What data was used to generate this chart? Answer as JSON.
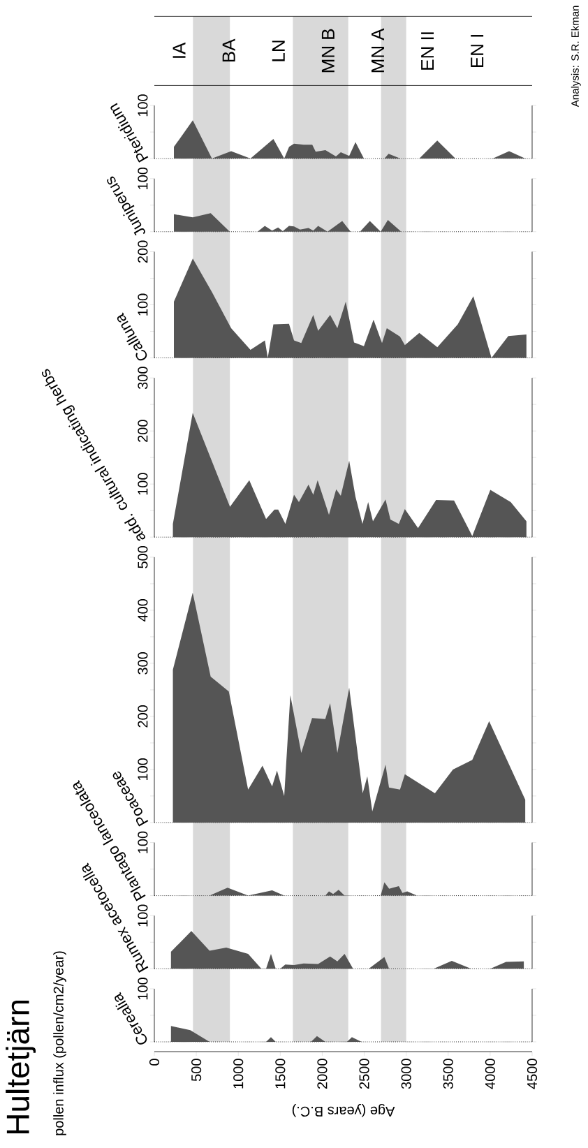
{
  "chart_data": [
    {
      "type": "area",
      "title": "Hultetjärn",
      "subtitle": "pollen influx (pollen/cm2/year)",
      "xlabel": "Age (years B.C.)",
      "xlim": [
        0,
        4500
      ],
      "xticks": [
        0,
        500,
        1000,
        1500,
        2000,
        2500,
        3000,
        3500,
        4000,
        4500
      ],
      "ylim": [
        0,
        100
      ],
      "yticks": [
        {
          "value": 0,
          "label": null
        },
        {
          "value": 50,
          "label": null
        },
        100
      ],
      "bands": [
        {
          "axis": "x",
          "from": 460,
          "to": 900,
          "color": "#d9d9d9"
        },
        {
          "axis": "x",
          "from": 1650,
          "to": 2310,
          "color": "#d9d9d9"
        },
        {
          "axis": "x",
          "from": 2700,
          "to": 3000,
          "color": "#d9d9d9"
        }
      ],
      "series": [
        {
          "name": "Cerealia",
          "color": "#555555",
          "x": [
            198,
            428,
            658,
            1331,
            1389,
            1446,
            1866,
            1937,
            2037,
            2295,
            2353,
            2468
          ],
          "values": [
            30,
            22,
            0,
            0,
            9,
            0,
            0,
            11,
            0,
            0,
            9,
            0
          ]
        }
      ]
    },
    {
      "type": "area",
      "xlim": [
        0,
        4500
      ],
      "ylim": [
        0,
        100
      ],
      "yticks": [
        {
          "value": 0,
          "label": null
        },
        {
          "value": 50,
          "label": null
        },
        100
      ],
      "tick_labels": "y",
      "bands": [
        {
          "axis": "x",
          "from": 460,
          "to": 900,
          "color": "#d9d9d9"
        },
        {
          "axis": "x",
          "from": 1650,
          "to": 2310,
          "color": "#d9d9d9"
        },
        {
          "axis": "x",
          "from": 2700,
          "to": 3000,
          "color": "#d9d9d9"
        }
      ],
      "series": [
        {
          "name": "Rumex acetocella",
          "color": "#555555",
          "x": [
            198,
            441,
            658,
            857,
            1117,
            1275,
            1331,
            1389,
            1446,
            1500,
            1560,
            1664,
            1778,
            1951,
            2094,
            2180,
            2266,
            2367,
            2554,
            2740,
            2796,
            3328,
            3543,
            3773,
            4002,
            4189,
            4401
          ],
          "values": [
            32,
            71,
            34,
            40,
            28,
            0,
            0,
            28,
            0,
            0,
            8,
            7,
            10,
            9,
            23,
            14,
            28,
            0,
            0,
            22,
            0,
            0,
            15,
            0,
            0,
            13,
            14
          ]
        }
      ]
    },
    {
      "type": "area",
      "xlim": [
        0,
        4500
      ],
      "ylim": [
        0,
        100
      ],
      "yticks": [
        {
          "value": 0,
          "label": null
        },
        {
          "value": 50,
          "label": null
        },
        100
      ],
      "tick_labels": "y",
      "bands": [
        {
          "axis": "x",
          "from": 460,
          "to": 900,
          "color": "#d9d9d9"
        },
        {
          "axis": "x",
          "from": 1650,
          "to": 2310,
          "color": "#d9d9d9"
        },
        {
          "axis": "x",
          "from": 2700,
          "to": 3000,
          "color": "#d9d9d9"
        }
      ],
      "series": [
        {
          "name": "Plantago lanceolata",
          "color": "#555555",
          "x": [
            658,
            872,
            1117,
            1403,
            1547,
            2037,
            2080,
            2130,
            2195,
            2266,
            2696,
            2740,
            2797,
            2912,
            2955,
            3012,
            3128
          ],
          "values": [
            0,
            15,
            0,
            10,
            0,
            0,
            8,
            3,
            11,
            0,
            0,
            25,
            13,
            18,
            5,
            8,
            0
          ]
        }
      ]
    },
    {
      "type": "area",
      "xlim": [
        0,
        4500
      ],
      "ylim": [
        0,
        500
      ],
      "yticks": [
        {
          "value": 0,
          "label": null
        },
        {
          "value": 50,
          "label": null
        },
        100,
        {
          "value": 150,
          "label": null
        },
        200,
        {
          "value": 250,
          "label": null
        },
        300,
        {
          "value": 350,
          "label": null
        },
        400,
        {
          "value": 450,
          "label": null
        },
        500
      ],
      "tick_labels": "y",
      "bands": [
        {
          "axis": "x",
          "from": 460,
          "to": 900,
          "color": "#d9d9d9"
        },
        {
          "axis": "x",
          "from": 1650,
          "to": 2310,
          "color": "#d9d9d9"
        },
        {
          "axis": "x",
          "from": 2700,
          "to": 3000,
          "color": "#d9d9d9"
        }
      ],
      "series": [
        {
          "name": "Poaceae",
          "color": "#555555",
          "x": [
            221,
            457,
            671,
            887,
            1117,
            1288,
            1403,
            1461,
            1547,
            1620,
            1750,
            1879,
            2036,
            2094,
            2180,
            2321,
            2482,
            2537,
            2596,
            2754,
            2795,
            2926,
            2984,
            3342,
            3557,
            3787,
            3988,
            4418
          ],
          "values": [
            288,
            433,
            275,
            247,
            62,
            107,
            68,
            98,
            50,
            240,
            131,
            197,
            195,
            225,
            131,
            254,
            55,
            87,
            21,
            109,
            66,
            62,
            91,
            55,
            100,
            118,
            191,
            43
          ]
        }
      ]
    },
    {
      "type": "area",
      "xlim": [
        0,
        4500
      ],
      "ylim": [
        0,
        300
      ],
      "yticks": [
        {
          "value": 0,
          "label": null
        },
        {
          "value": 50,
          "label": null
        },
        100,
        {
          "value": 150,
          "label": null
        },
        200,
        {
          "value": 250,
          "label": null
        },
        300
      ],
      "tick_labels": "y",
      "bands": [
        {
          "axis": "x",
          "from": 460,
          "to": 900,
          "color": "#d9d9d9"
        },
        {
          "axis": "x",
          "from": 1650,
          "to": 2310,
          "color": "#d9d9d9"
        },
        {
          "axis": "x",
          "from": 2700,
          "to": 3000,
          "color": "#d9d9d9"
        }
      ],
      "series": [
        {
          "name": "add. cultural indicating herbs",
          "color": "#555555",
          "x": [
            221,
            457,
            901,
            1131,
            1331,
            1431,
            1475,
            1561,
            1664,
            1722,
            1836,
            1893,
            1945,
            2080,
            2166,
            2221,
            2321,
            2396,
            2479,
            2547,
            2604,
            2754,
            2812,
            2912,
            2984,
            3141,
            3356,
            3570,
            3787,
            4002,
            4245,
            4432
          ],
          "values": [
            25,
            234,
            57,
            107,
            34,
            52,
            52,
            25,
            80,
            66,
            99,
            80,
            107,
            42,
            90,
            78,
            144,
            76,
            25,
            66,
            30,
            71,
            33,
            25,
            53,
            17,
            70,
            69,
            2,
            89,
            66,
            30
          ]
        }
      ]
    },
    {
      "type": "area",
      "xlim": [
        0,
        4500
      ],
      "ylim": [
        0,
        200
      ],
      "yticks": [
        {
          "value": 0,
          "label": null
        },
        {
          "value": 50,
          "label": null
        },
        100,
        {
          "value": 150,
          "label": null
        },
        200
      ],
      "tick_labels": "y",
      "bands": [
        {
          "axis": "x",
          "from": 460,
          "to": 900,
          "color": "#d9d9d9"
        },
        {
          "axis": "x",
          "from": 1650,
          "to": 2310,
          "color": "#d9d9d9"
        },
        {
          "axis": "x",
          "from": 2700,
          "to": 3000,
          "color": "#d9d9d9"
        }
      ],
      "series": [
        {
          "name": "Calluna",
          "color": "#555555",
          "x": [
            233,
            458,
            686,
            915,
            1145,
            1317,
            1351,
            1418,
            1604,
            1664,
            1750,
            1893,
            1951,
            2094,
            2180,
            2280,
            2379,
            2496,
            2611,
            2712,
            2769,
            2926,
            2984,
            3156,
            3371,
            3614,
            3800,
            4016,
            4216,
            4432
          ],
          "values": [
            106,
            187,
            124,
            56,
            15,
            33,
            0,
            63,
            64,
            33,
            28,
            81,
            51,
            81,
            56,
            106,
            29,
            22,
            72,
            28,
            56,
            40,
            24,
            47,
            20,
            63,
            116,
            0,
            41,
            44
          ]
        }
      ]
    },
    {
      "type": "area",
      "xlim": [
        0,
        4500
      ],
      "ylim": [
        0,
        100
      ],
      "yticks": [
        {
          "value": 0,
          "label": null
        },
        {
          "value": 50,
          "label": null
        },
        100
      ],
      "tick_labels": "y",
      "bands": [
        {
          "axis": "x",
          "from": 460,
          "to": 900,
          "color": "#d9d9d9"
        },
        {
          "axis": "x",
          "from": 1650,
          "to": 2310,
          "color": "#d9d9d9"
        },
        {
          "axis": "x",
          "from": 2700,
          "to": 3000,
          "color": "#d9d9d9"
        }
      ],
      "series": [
        {
          "name": "Juniperus",
          "color": "#555555",
          "x": [
            233,
            458,
            671,
            898,
            1145,
            1230,
            1316,
            1403,
            1474,
            1530,
            1604,
            1664,
            1735,
            1836,
            1893,
            1951,
            2063,
            2238,
            2338,
            2450,
            2567,
            2696,
            2782,
            2940
          ],
          "values": [
            33,
            27,
            35,
            0,
            0,
            0,
            11,
            2,
            8,
            1,
            11,
            10,
            4,
            7,
            2,
            11,
            0,
            20,
            0,
            0,
            20,
            0,
            22,
            0
          ]
        }
      ]
    },
    {
      "type": "area",
      "xlim": [
        0,
        4500
      ],
      "ylim": [
        0,
        100
      ],
      "yticks": [
        {
          "value": 0,
          "label": null
        },
        {
          "value": 50,
          "label": null
        },
        100
      ],
      "tick_labels": "y",
      "bands": [
        {
          "axis": "x",
          "from": 460,
          "to": 900,
          "color": "#d9d9d9"
        },
        {
          "axis": "x",
          "from": 1650,
          "to": 2310,
          "color": "#d9d9d9"
        },
        {
          "axis": "x",
          "from": 2700,
          "to": 3000,
          "color": "#d9d9d9"
        }
      ],
      "annotations": [
        "IA",
        "BA",
        "LN",
        "MN B",
        "MN A",
        "EN II",
        "EN I",
        "Analysis: S.R. Ekman"
      ],
      "series": [
        {
          "name": "Pteridium",
          "color": "#555555",
          "x": [
            233,
            458,
            686,
            915,
            1145,
            1418,
            1547,
            1605,
            1664,
            1779,
            1881,
            1922,
            2038,
            2163,
            2221,
            2321,
            2396,
            2496,
            2740,
            2790,
            2930,
            3156,
            3370,
            3586,
            4031,
            4226,
            4418
          ],
          "values": [
            22,
            72,
            0,
            14,
            0,
            37,
            0,
            22,
            28,
            26,
            26,
            13,
            16,
            4,
            12,
            5,
            31,
            0,
            0,
            9,
            0,
            0,
            34,
            0,
            0,
            14,
            0
          ]
        }
      ]
    }
  ]
}
